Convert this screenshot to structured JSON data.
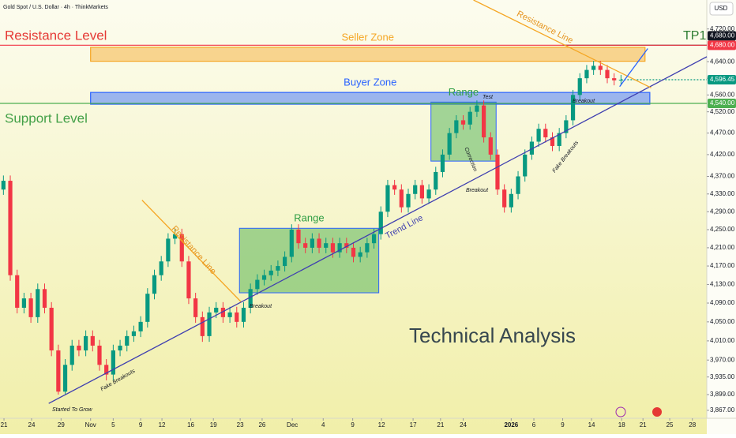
{
  "chart_data": {
    "type": "candlestick",
    "title": "Gold Spot / U.S. Dollar · 4h · ThinkMarkets",
    "currency": "USD",
    "log": true,
    "up_color": "#089981",
    "down_color": "#f23645",
    "ylim": [
      3851,
      4792
    ],
    "xlim": [
      -0.5,
      102.5
    ],
    "yticks": [
      {
        "value": 4720,
        "label": "4,720.00"
      },
      {
        "value": 4640,
        "label": "4,640.00"
      },
      {
        "value": 4600,
        "label": "4,600.00"
      },
      {
        "value": 4560,
        "label": "4,560.00"
      },
      {
        "value": 4520,
        "label": "4,520.00"
      },
      {
        "value": 4470,
        "label": "4,470.00"
      },
      {
        "value": 4420,
        "label": "4,420.00"
      },
      {
        "value": 4370,
        "label": "4,370.00"
      },
      {
        "value": 4330,
        "label": "4,330.00"
      },
      {
        "value": 4290,
        "label": "4,290.00"
      },
      {
        "value": 4250,
        "label": "4,250.00"
      },
      {
        "value": 4210,
        "label": "4,210.00"
      },
      {
        "value": 4170,
        "label": "4,170.00"
      },
      {
        "value": 4130,
        "label": "4,130.00"
      },
      {
        "value": 4090,
        "label": "4,090.00"
      },
      {
        "value": 4050,
        "label": "4,050.00"
      },
      {
        "value": 4010,
        "label": "4,010.00"
      },
      {
        "value": 3970,
        "label": "3,970.00"
      },
      {
        "value": 3935,
        "label": "3,935.00"
      },
      {
        "value": 3899,
        "label": "3,899.00"
      },
      {
        "value": 3867,
        "label": "3,867.00"
      }
    ],
    "xticks": [
      {
        "value": 0.08,
        "label": "21"
      },
      {
        "value": 4.1,
        "label": "24"
      },
      {
        "value": 8.4,
        "label": "29"
      },
      {
        "value": 12.7,
        "label": "Nov"
      },
      {
        "value": 16,
        "label": "5"
      },
      {
        "value": 20,
        "label": "9"
      },
      {
        "value": 23.1,
        "label": "12"
      },
      {
        "value": 27.3,
        "label": "16"
      },
      {
        "value": 30.6,
        "label": "19"
      },
      {
        "value": 34.5,
        "label": "23"
      },
      {
        "value": 37.7,
        "label": "26"
      },
      {
        "value": 42.1,
        "label": "Dec"
      },
      {
        "value": 46.6,
        "label": "4"
      },
      {
        "value": 50.9,
        "label": "9"
      },
      {
        "value": 55.1,
        "label": "12"
      },
      {
        "value": 59.7,
        "label": "17"
      },
      {
        "value": 63.7,
        "label": "21"
      },
      {
        "value": 67,
        "label": "24"
      },
      {
        "value": 74,
        "label": "2026"
      },
      {
        "value": 77.3,
        "label": "6"
      },
      {
        "value": 81.5,
        "label": "9"
      },
      {
        "value": 85.7,
        "label": "14"
      },
      {
        "value": 90.1,
        "label": "18"
      },
      {
        "value": 93.2,
        "label": "21"
      },
      {
        "value": 97.1,
        "label": "25"
      },
      {
        "value": 100.4,
        "label": "28"
      }
    ],
    "open": [
      4340,
      4360,
      4150,
      4080,
      4100,
      4060,
      4120,
      4080,
      3990,
      3905,
      3960,
      4000,
      3990,
      4020,
      4000,
      3960,
      3940,
      3990,
      4000,
      4020,
      4030,
      4050,
      4110,
      4150,
      4180,
      4230,
      4240,
      4180,
      4100,
      4060,
      4020,
      4070,
      4080,
      4060,
      4070,
      4050,
      4080,
      4120,
      4140,
      4150,
      4160,
      4170,
      4190,
      4250,
      4220,
      4210,
      4230,
      4210,
      4220,
      4200,
      4220,
      4210,
      4190,
      4200,
      4220,
      4240,
      4290,
      4350,
      4340,
      4300,
      4330,
      4350,
      4320,
      4340,
      4380,
      4420,
      4470,
      4500,
      4490,
      4520,
      4535,
      4460,
      4420,
      4340,
      4300,
      4330,
      4370,
      4420,
      4450,
      4480,
      4460,
      4440,
      4470,
      4500,
      4560,
      4600,
      4620,
      4630,
      4620,
      4600,
      4595
    ],
    "high": [
      4372,
      4372,
      4162,
      4112,
      4112,
      4132,
      4132,
      4092,
      4002,
      3972,
      4012,
      4012,
      4032,
      4032,
      4012,
      3972,
      4002,
      4012,
      4032,
      4042,
      4062,
      4122,
      4162,
      4192,
      4242,
      4252,
      4252,
      4192,
      4112,
      4072,
      4082,
      4092,
      4092,
      4082,
      4082,
      4092,
      4132,
      4152,
      4162,
      4172,
      4182,
      4202,
      4262,
      4262,
      4232,
      4242,
      4242,
      4232,
      4232,
      4232,
      4232,
      4222,
      4212,
      4232,
      4252,
      4302,
      4362,
      4362,
      4352,
      4342,
      4362,
      4362,
      4352,
      4392,
      4432,
      4482,
      4512,
      4512,
      4532,
      4547,
      4547,
      4472,
      4432,
      4352,
      4342,
      4382,
      4432,
      4462,
      4492,
      4492,
      4472,
      4482,
      4512,
      4572,
      4612,
      4632,
      4642,
      4642,
      4632,
      4612,
      4608
    ],
    "low": [
      4328,
      4138,
      4068,
      4068,
      4048,
      4048,
      4068,
      3978,
      3899,
      3900,
      3948,
      3978,
      3978,
      3988,
      3948,
      3928,
      3928,
      3978,
      3988,
      4008,
      4018,
      4038,
      4098,
      4138,
      4168,
      4218,
      4168,
      4088,
      4048,
      4008,
      4008,
      4058,
      4048,
      4048,
      4038,
      4038,
      4068,
      4108,
      4128,
      4138,
      4148,
      4158,
      4178,
      4208,
      4198,
      4198,
      4198,
      4198,
      4188,
      4188,
      4198,
      4178,
      4178,
      4188,
      4208,
      4228,
      4278,
      4328,
      4288,
      4288,
      4318,
      4308,
      4308,
      4328,
      4368,
      4408,
      4458,
      4478,
      4478,
      4508,
      4448,
      4408,
      4328,
      4288,
      4288,
      4318,
      4358,
      4408,
      4438,
      4448,
      4428,
      4428,
      4458,
      4488,
      4548,
      4588,
      4608,
      4608,
      4588,
      4583,
      4583
    ],
    "close": [
      4360,
      4150,
      4080,
      4100,
      4060,
      4120,
      4080,
      3990,
      3905,
      3960,
      4000,
      3990,
      4020,
      4000,
      3960,
      3940,
      3990,
      4000,
      4020,
      4030,
      4050,
      4110,
      4150,
      4180,
      4230,
      4240,
      4180,
      4100,
      4060,
      4020,
      4070,
      4080,
      4060,
      4070,
      4050,
      4080,
      4120,
      4140,
      4150,
      4160,
      4170,
      4190,
      4250,
      4220,
      4210,
      4230,
      4210,
      4220,
      4200,
      4220,
      4210,
      4190,
      4200,
      4220,
      4240,
      4290,
      4350,
      4340,
      4300,
      4330,
      4350,
      4320,
      4340,
      4380,
      4420,
      4470,
      4500,
      4490,
      4520,
      4535,
      4460,
      4420,
      4340,
      4300,
      4330,
      4370,
      4420,
      4450,
      4480,
      4460,
      4440,
      4470,
      4500,
      4560,
      4600,
      4620,
      4630,
      4620,
      4600,
      4595,
      4596.45
    ],
    "levels": [
      {
        "value": 4680,
        "label": "4,680.00",
        "color": "#131722",
        "start": 81.5
      },
      {
        "value": 4680,
        "label": "4,680.00",
        "color": "#f23645",
        "start": -0.5
      },
      {
        "value": 4596.45,
        "label": "4,596.45",
        "color": "#089981",
        "start": 90
      },
      {
        "value": 4540,
        "label": "4,540.00",
        "color": "#4caf50",
        "start": -0.5
      }
    ],
    "zones": [
      {
        "label": "Seller Zone",
        "low": 4641,
        "high": 4675,
        "start": 12.7,
        "end": 93.5,
        "color": "#f5a623"
      },
      {
        "label": "Buyer Zone",
        "low": 4538,
        "high": 4566,
        "start": 12.7,
        "end": 94.2,
        "color": "#2962ff"
      }
    ],
    "ranges": [
      {
        "label": "Range",
        "low": 4112,
        "high": 4253,
        "start": 34.4,
        "end": 54.7
      },
      {
        "label": "Range",
        "low": 4405,
        "high": 4543,
        "start": 62.3,
        "end": 71.8
      }
    ],
    "lines": [
      {
        "start": 6.6,
        "end": 102.5,
        "from": 3881,
        "to": 4652,
        "color": "#3f3fb0"
      },
      {
        "start": 20.2,
        "end": 34.6,
        "from": 4316,
        "to": 4093,
        "color": "#f5a623"
      },
      {
        "start": 68.5,
        "end": 94.4,
        "from": 4792,
        "to": 4577,
        "color": "#f5a623"
      },
      {
        "start": 89.8,
        "end": 93.9,
        "from": 4580,
        "to": 4672,
        "color": "#2962ff"
      }
    ],
    "annotations": [
      "Resistance Level",
      "TP1",
      "Support Level",
      "Test",
      "Breakout",
      "Correction",
      "Breakout",
      "Fake Breakouts",
      "Trend Line",
      "Resistance Line",
      "Resistance Line",
      "Breakout",
      "Fake Breakouts",
      "Started To Grow",
      "Technical Analysis"
    ]
  }
}
